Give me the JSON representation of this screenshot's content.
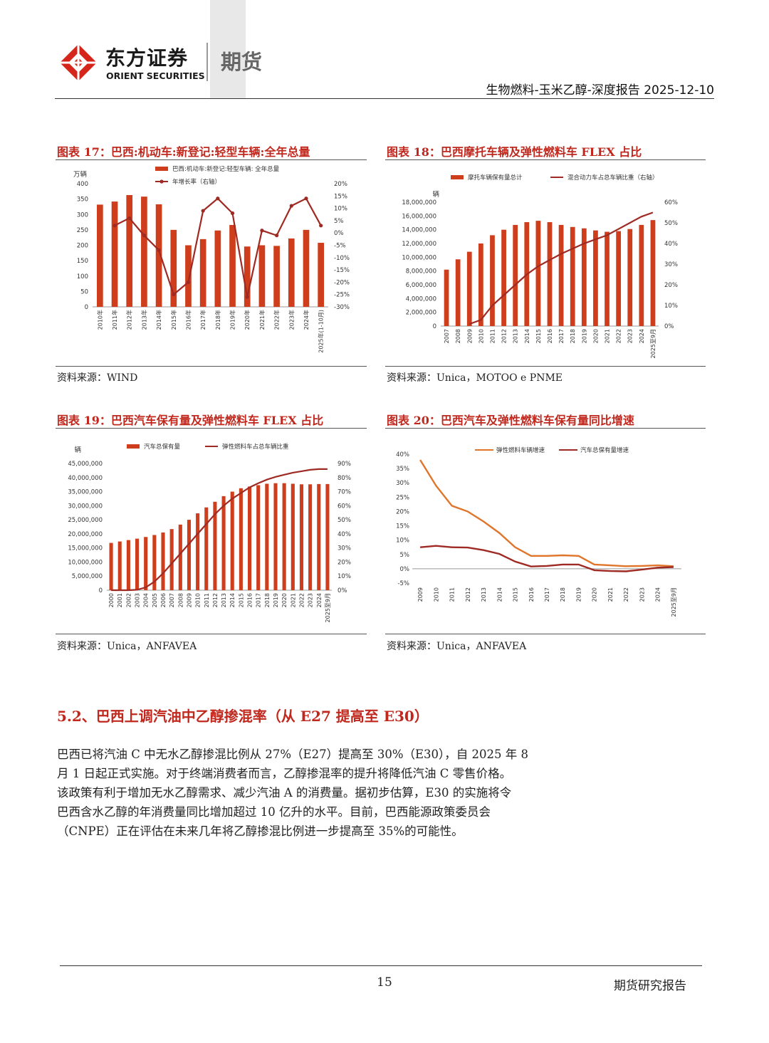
{
  "header": {
    "brand_cn": "东方证券",
    "brand_en": "ORIENT SECURITIES",
    "tag": "期货",
    "report_title": "生物燃料-玉米乙醇-深度报告 2025-12-10",
    "brand_color": "#d5261c"
  },
  "figures": [
    {
      "title": "图表 17：巴西:机动车:新登记:轻型车辆:全年总量",
      "source": "资料来源：WIND",
      "chart_data": {
        "type": "bar+line",
        "unit_left": "万辆",
        "categories": [
          "2010年",
          "2011年",
          "2012年",
          "2013年",
          "2014年",
          "2015年",
          "2016年",
          "2017年",
          "2018年",
          "2019年",
          "2020年",
          "2021年",
          "2022年",
          "2023年",
          "2024年",
          "2025年(1-10月)"
        ],
        "series": [
          {
            "name": "巴西:机动车:新登记:轻型车辆: 全年总量",
            "kind": "bar",
            "axis": "left",
            "values": [
              332,
              342,
              363,
              358,
              333,
              250,
              200,
              220,
              248,
              266,
              196,
              200,
              198,
              222,
              250,
              208
            ]
          },
          {
            "name": "年增长率（右轴）",
            "kind": "line",
            "axis": "right",
            "values": [
              null,
              3,
              6,
              -1,
              -7,
              -25,
              -20,
              9,
              14,
              8,
              -26,
              1,
              -1,
              11,
              14,
              3
            ]
          }
        ],
        "left_ticks": [
          "0",
          "50",
          "100",
          "150",
          "200",
          "250",
          "300",
          "350",
          "400"
        ],
        "right_ticks": [
          "-30%",
          "-25%",
          "-20%",
          "-15%",
          "-10%",
          "-5%",
          "0%",
          "5%",
          "10%",
          "15%",
          "20%"
        ],
        "ylim_left": [
          0,
          400
        ],
        "ylim_right": [
          -30,
          20
        ]
      }
    },
    {
      "title": "图表 18：巴西摩托车辆及弹性燃料车 FLEX 占比",
      "source": "资料来源：Unica，MOTOO e PNME",
      "chart_data": {
        "type": "bar+line",
        "unit_left": "辆",
        "categories": [
          "2007",
          "2008",
          "2009",
          "2010",
          "2011",
          "2012",
          "2013",
          "2014",
          "2015",
          "2016",
          "2017",
          "2018",
          "2019",
          "2020",
          "2021",
          "2022",
          "2023",
          "2024",
          "2025至9月"
        ],
        "series": [
          {
            "name": "摩托车辆保有量总计",
            "kind": "bar",
            "axis": "left",
            "values": [
              8200000,
              9700000,
              10800000,
              12000000,
              13200000,
              14000000,
              14700000,
              15100000,
              15300000,
              15100000,
              14700000,
              14400000,
              14200000,
              13900000,
              13700000,
              13800000,
              14100000,
              14700000,
              15400000
            ]
          },
          {
            "name": "混合动力车占总车辆比重（右轴）",
            "kind": "line",
            "axis": "right",
            "values": [
              null,
              null,
              1,
              3,
              10,
              15,
              20,
              25,
              29,
              32,
              35,
              37.5,
              40,
              42,
              44,
              47,
              50,
              53,
              55
            ]
          }
        ],
        "left_ticks": [
          "0",
          "2,000,000",
          "4,000,000",
          "6,000,000",
          "8,000,000",
          "10,000,000",
          "12,000,000",
          "14,000,000",
          "16,000,000",
          "18,000,000"
        ],
        "right_ticks": [
          "0%",
          "10%",
          "20%",
          "30%",
          "40%",
          "50%",
          "60%"
        ],
        "ylim_left": [
          0,
          18000000
        ],
        "ylim_right": [
          0,
          60
        ]
      }
    },
    {
      "title": "图表 19：巴西汽车保有量及弹性燃料车 FLEX 占比",
      "source": "资料来源：Unica，ANFAVEA",
      "chart_data": {
        "type": "bar+line",
        "unit_left": "辆",
        "categories": [
          "2000",
          "2001",
          "2002",
          "2003",
          "2004",
          "2005",
          "2006",
          "2007",
          "2008",
          "2009",
          "2010",
          "2011",
          "2012",
          "2013",
          "2014",
          "2015",
          "2016",
          "2017",
          "2018",
          "2019",
          "2020",
          "2021",
          "2022",
          "2023",
          "2024",
          "2025至9月"
        ],
        "series": [
          {
            "name": "汽车总保有量",
            "kind": "bar",
            "axis": "left",
            "values": [
              16800000,
              17300000,
              17800000,
              18300000,
              18900000,
              19600000,
              20500000,
              21700000,
              23300000,
              25000000,
              27300000,
              29400000,
              31400000,
              33400000,
              35000000,
              36200000,
              36800000,
              37300000,
              37800000,
              38000000,
              38000000,
              37800000,
              37600000,
              37600000,
              37700000,
              37700000
            ]
          },
          {
            "name": "弹性燃料车占总车辆比重",
            "kind": "line",
            "axis": "right",
            "values": [
              0,
              0,
              0,
              0.3,
              2,
              6,
              12,
              19,
              26,
              33,
              40,
              47,
              54,
              60,
              65,
              69,
              73,
              76,
              78.5,
              80.5,
              82,
              83.5,
              84.5,
              85.5,
              86,
              86
            ]
          }
        ],
        "left_ticks": [
          "0",
          "5,000,000",
          "10,000,000",
          "15,000,000",
          "20,000,000",
          "25,000,000",
          "30,000,000",
          "35,000,000",
          "40,000,000",
          "45,000,000"
        ],
        "right_ticks": [
          "0%",
          "10%",
          "20%",
          "30%",
          "40%",
          "50%",
          "60%",
          "70%",
          "80%",
          "90%"
        ],
        "ylim_left": [
          0,
          45000000
        ],
        "ylim_right": [
          0,
          90
        ]
      }
    },
    {
      "title": "图表 20：巴西汽车及弹性燃料车保有量同比增速",
      "source": "资料来源：Unica，ANFAVEA",
      "chart_data": {
        "type": "line",
        "categories": [
          "2009",
          "2010",
          "2011",
          "2012",
          "2013",
          "2014",
          "2015",
          "2016",
          "2017",
          "2018",
          "2019",
          "2020",
          "2021",
          "2022",
          "2023",
          "2024",
          "2025至9月"
        ],
        "series": [
          {
            "name": "弹性燃料车辆增速",
            "values": [
              38,
              29,
              22,
              20,
              16.5,
              12.5,
              7.5,
              4.5,
              4.5,
              4.7,
              4.5,
              1.5,
              1.2,
              0.9,
              1,
              1.2,
              0.9
            ]
          },
          {
            "name": "汽车总保有量增速",
            "values": [
              7.5,
              8,
              7.5,
              7.4,
              6.5,
              5.2,
              2.5,
              0.8,
              1,
              1.5,
              1.5,
              -0.5,
              -0.8,
              -0.9,
              -0.3,
              0.4,
              0.6
            ]
          }
        ],
        "ticks": [
          "-5%",
          "0%",
          "5%",
          "10%",
          "15%",
          "20%",
          "25%",
          "30%",
          "35%",
          "40%"
        ],
        "ylim": [
          -5,
          40
        ]
      }
    }
  ],
  "section": {
    "heading": "5.2、巴西上调汽油中乙醇掺混率（从 E27 提高至 E30）",
    "paragraph_lines": [
      "巴西已将汽油 C 中无水乙醇掺混比例从 27%（E27）提高至 30%（E30），自 2025 年 8",
      "月 1 日起正式实施。对于终端消费者而言，乙醇掺混率的提升将降低汽油 C 零售价格。",
      "该政策有利于增加无水乙醇需求、减少汽油 A 的消费量。据初步估算，E30 的实施将令",
      "巴西含水乙醇的年消费量同比增加超过 10 亿升的水平。目前，巴西能源政策委员会",
      "（CNPE）正在评估在未来几年将乙醇掺混比例进一步提高至 35%的可能性。"
    ]
  },
  "footer": {
    "page_number": "15",
    "label": "期货研究报告"
  },
  "colors": {
    "bar": "#cf3e1c",
    "line_dark": "#9e2a23",
    "line_orange": "#e0752a",
    "title_red": "#c0281e"
  }
}
